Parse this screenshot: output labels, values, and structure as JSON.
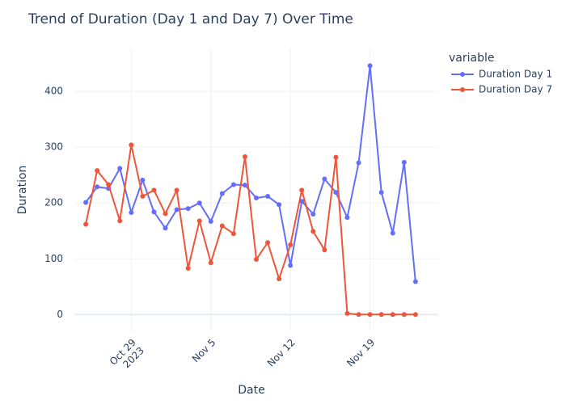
{
  "chart_data": {
    "type": "line",
    "title": "Trend of Duration (Day 1 and Day 7) Over Time",
    "x_label": "Date",
    "y_label": "Duration",
    "legend_title": "variable",
    "legend": "right",
    "x": [
      "2023-10-25",
      "2023-10-26",
      "2023-10-27",
      "2023-10-28",
      "2023-10-29",
      "2023-10-30",
      "2023-10-31",
      "2023-11-01",
      "2023-11-02",
      "2023-11-03",
      "2023-11-04",
      "2023-11-05",
      "2023-11-06",
      "2023-11-07",
      "2023-11-08",
      "2023-11-09",
      "2023-11-10",
      "2023-11-11",
      "2023-11-12",
      "2023-11-13",
      "2023-11-14",
      "2023-11-15",
      "2023-11-16",
      "2023-11-17",
      "2023-11-18",
      "2023-11-19",
      "2023-11-20",
      "2023-11-21",
      "2023-11-22",
      "2023-11-23"
    ],
    "series": [
      {
        "name": "Duration Day 1",
        "color": "#636efa",
        "values": [
          201,
          229,
          226,
          262,
          183,
          241,
          184,
          155,
          188,
          190,
          200,
          167,
          217,
          233,
          232,
          209,
          212,
          197,
          88,
          203,
          180,
          243,
          219,
          174,
          272,
          446,
          219,
          146,
          273,
          59
        ]
      },
      {
        "name": "Duration Day 7",
        "color": "#EF553B",
        "values": [
          162,
          258,
          233,
          168,
          304,
          212,
          223,
          181,
          223,
          83,
          168,
          93,
          159,
          145,
          283,
          99,
          129,
          64,
          125,
          223,
          149,
          116,
          282,
          2,
          0,
          0,
          0,
          0,
          0,
          0
        ]
      }
    ],
    "xlim": [
      "2023-10-24",
      "2023-11-25"
    ],
    "xticks": [
      {
        "value": "2023-10-29",
        "label": "Oct 29",
        "sublabel": "2023"
      },
      {
        "value": "2023-11-05",
        "label": "Nov 5"
      },
      {
        "value": "2023-11-12",
        "label": "Nov 12"
      },
      {
        "value": "2023-11-19",
        "label": "Nov 19"
      }
    ],
    "ylim": [
      -30,
      477
    ],
    "yticks": [
      0,
      100,
      200,
      300,
      400
    ],
    "grid": true
  }
}
